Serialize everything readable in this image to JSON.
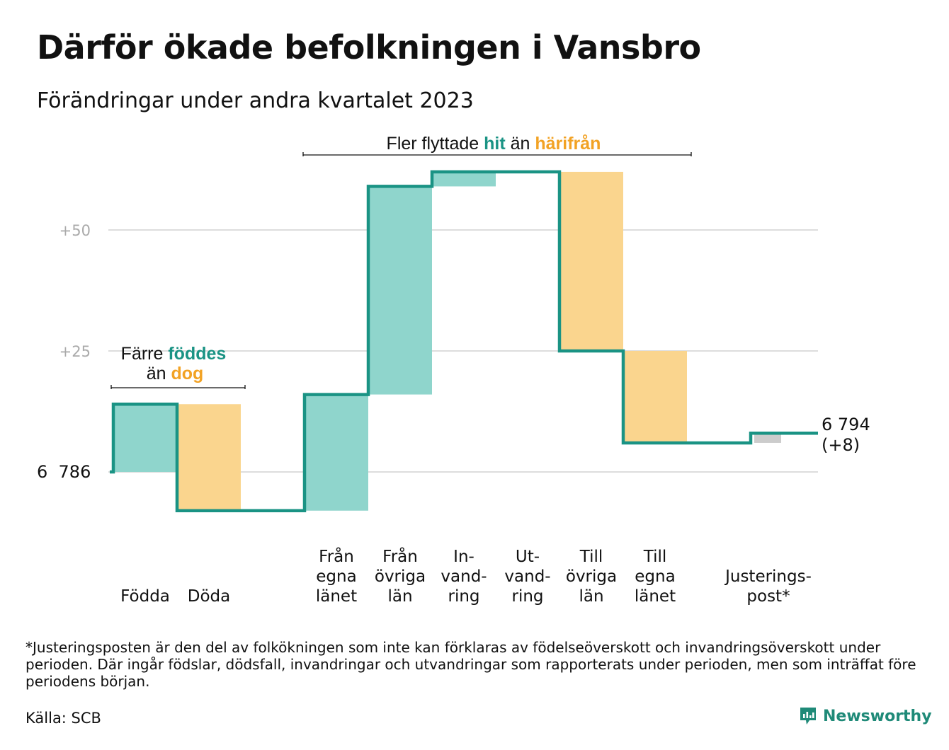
{
  "title": "Därför ökade befolkningen i Vansbro",
  "subtitle": "Förändringar under andra kvartalet 2023",
  "colors": {
    "in": "#8fd5cc",
    "out": "#fad58e",
    "adjust": "#cccccc",
    "line": "#1a9384",
    "teal_text": "#1a9384",
    "orange_text": "#f2a224",
    "grid": "#dddddd",
    "tick_text": "#aaaaaa"
  },
  "annotations": {
    "births": {
      "part1": "Färre",
      "highlight1": "föddes",
      "part2": "än",
      "highlight2": "dog"
    },
    "migration": {
      "part1": "Fler flyttade",
      "highlight1": "hit",
      "part2": "än",
      "highlight2": "härifrån"
    }
  },
  "chart_data": {
    "type": "waterfall",
    "start_value": 6786,
    "start_label": "6  786",
    "end_label_line1": "6 794",
    "end_label_line2": "(+8)",
    "y_ticks": [
      {
        "offset": 25,
        "label": "+25"
      },
      {
        "offset": 50,
        "label": "+50"
      }
    ],
    "ylim_offset": [
      -12,
      63
    ],
    "grid": true,
    "steps": [
      {
        "category": [
          "Födda"
        ],
        "change": 14,
        "kind": "in"
      },
      {
        "category": [
          "Döda"
        ],
        "change": -22,
        "kind": "out"
      },
      {
        "category": [
          ""
        ],
        "change": 0,
        "kind": "none"
      },
      {
        "category": [
          "Från",
          "egna",
          "länet"
        ],
        "change": 24,
        "kind": "in"
      },
      {
        "category": [
          "Från",
          "övriga",
          "län"
        ],
        "change": 43,
        "kind": "in"
      },
      {
        "category": [
          "In-",
          "vand-",
          "ring"
        ],
        "change": 3,
        "kind": "in"
      },
      {
        "category": [
          "Ut-",
          "vand-",
          "ring"
        ],
        "change": 0,
        "kind": "none"
      },
      {
        "category": [
          "Till",
          "övriga",
          "län"
        ],
        "change": -37,
        "kind": "out"
      },
      {
        "category": [
          "Till",
          "egna",
          "länet"
        ],
        "change": -19,
        "kind": "out"
      },
      {
        "category": [
          ""
        ],
        "change": 0,
        "kind": "none"
      },
      {
        "category": [
          "Justerings-",
          "post*"
        ],
        "change": 2,
        "kind": "adjust"
      }
    ]
  },
  "footnote": "*Justeringsposten är den del av folkökningen som inte kan förklaras av födelseöverskott och invandringsöverskott under perioden. Där ingår födslar, dödsfall, invandringar och utvandringar som rapporterats under perioden, men som inträffat före periodens början.",
  "source": "Källa: SCB",
  "brand": {
    "name": "Newsworthy",
    "icon": "newsworthy-logo-icon"
  }
}
